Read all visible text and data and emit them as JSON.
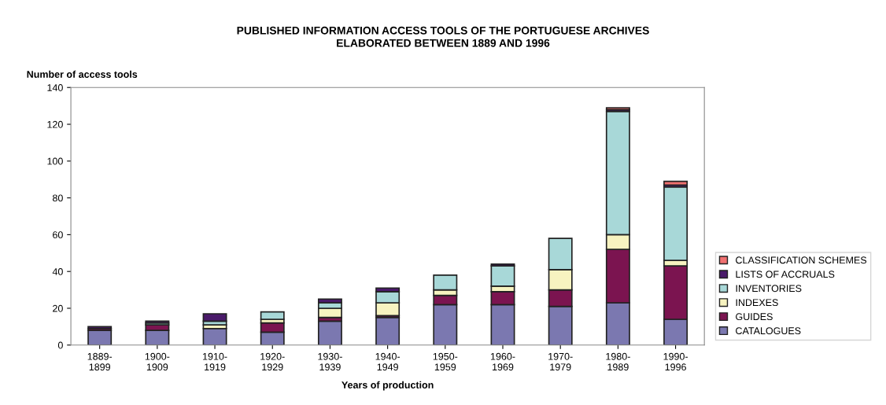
{
  "chart_data": {
    "type": "bar",
    "title": "PUBLISHED INFORMATION ACCESS TOOLS OF THE PORTUGUESE ARCHIVES\nELABORATED BETWEEN 1889 AND 1996",
    "ylabel": "Number of access tools",
    "xlabel": "Years of production",
    "categories": [
      "1889-\n1899",
      "1900-\n1909",
      "1910-\n1919",
      "1920-\n1929",
      "1930-\n1939",
      "1940-\n1949",
      "1950-\n1959",
      "1960-\n1969",
      "1970-\n1979",
      "1980-\n1989",
      "1990-\n1996"
    ],
    "stacked": true,
    "ylim": [
      0,
      140
    ],
    "yticks": [
      0,
      20,
      40,
      60,
      80,
      100,
      120,
      140
    ],
    "grid": false,
    "legend": "right",
    "series": [
      {
        "name": "CATALOGUES",
        "color": "#7b78b0",
        "values": [
          8,
          8,
          9,
          7,
          13,
          15,
          22,
          22,
          21,
          23,
          14
        ]
      },
      {
        "name": "GUIDES",
        "color": "#7b1450",
        "values": [
          1,
          3,
          0,
          5,
          2,
          1,
          5,
          7,
          9,
          29,
          29
        ]
      },
      {
        "name": "INDEXES",
        "color": "#f7f3c0",
        "values": [
          0,
          0,
          2,
          2,
          5,
          7,
          3,
          3,
          11,
          8,
          3
        ]
      },
      {
        "name": "INVENTORIES",
        "color": "#a8d8d8",
        "values": [
          0,
          1,
          2,
          4,
          3,
          6,
          8,
          11,
          17,
          67,
          40
        ]
      },
      {
        "name": "LISTS OF ACCRUALS",
        "color": "#4a1a6a",
        "values": [
          1,
          1,
          4,
          0,
          2,
          2,
          0,
          1,
          0,
          1,
          1
        ]
      },
      {
        "name": "CLASSIFICATION SCHEMES",
        "color": "#f07070",
        "values": [
          0,
          0,
          0,
          0,
          0,
          0,
          0,
          0,
          0,
          1,
          2
        ]
      }
    ]
  }
}
